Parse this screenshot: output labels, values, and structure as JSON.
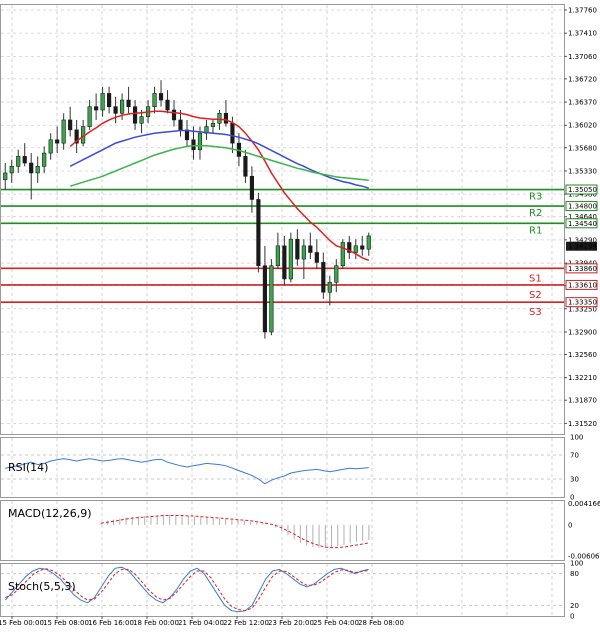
{
  "chart_data": [
    {
      "type": "candlestick",
      "name": "",
      "time_labels": [
        "15 Feb 00:00",
        "15 Feb 08:00",
        "16 Feb 16:00",
        "18 Feb 00:00",
        "21 Feb 04:00",
        "22 Feb 12:00",
        "23 Feb 20:00",
        "25 Feb 04:00",
        "28 Feb 08:00"
      ],
      "y_ticks": [
        "1.37760",
        "1.37410",
        "1.37060",
        "1.36720",
        "1.36370",
        "1.36020",
        "1.35680",
        "1.35330",
        "1.34980",
        "1.34640",
        "1.34290",
        "1.33940",
        "1.33600",
        "1.33250",
        "1.32900",
        "1.32560",
        "1.32210",
        "1.31870",
        "1.31520"
      ],
      "ylim": [
        1.3136,
        1.3785
      ],
      "current_price": "1.34194",
      "levels": [
        {
          "name": "R3",
          "value": 1.3505,
          "label": "1.35050",
          "color": "#1b8e1b"
        },
        {
          "name": "R2",
          "value": 1.348,
          "label": "1.34800",
          "color": "#1b8e1b"
        },
        {
          "name": "R1",
          "value": 1.3454,
          "label": "1.34540",
          "color": "#1b8e1b"
        },
        {
          "name": "S1",
          "value": 1.3386,
          "label": "1.33860",
          "color": "#d42020"
        },
        {
          "name": "S2",
          "value": 1.3361,
          "label": "1.33610",
          "color": "#d42020"
        },
        {
          "name": "S3",
          "value": 1.3335,
          "label": "1.33350",
          "color": "#d42020"
        }
      ],
      "candles": [
        [
          1.352,
          1.3545,
          1.3505,
          1.353
        ],
        [
          1.353,
          1.355,
          1.3515,
          1.354
        ],
        [
          1.354,
          1.3565,
          1.353,
          1.3555
        ],
        [
          1.3555,
          1.3575,
          1.354,
          1.3545
        ],
        [
          1.3545,
          1.356,
          1.349,
          1.353
        ],
        [
          1.353,
          1.3555,
          1.3515,
          1.354
        ],
        [
          1.354,
          1.357,
          1.353,
          1.356
        ],
        [
          1.356,
          1.359,
          1.355,
          1.358
        ],
        [
          1.358,
          1.36,
          1.356,
          1.3575
        ],
        [
          1.3575,
          1.362,
          1.3565,
          1.361
        ],
        [
          1.361,
          1.363,
          1.3585,
          1.3595
        ],
        [
          1.3595,
          1.361,
          1.356,
          1.3575
        ],
        [
          1.3575,
          1.361,
          1.357,
          1.36
        ],
        [
          1.36,
          1.364,
          1.3595,
          1.363
        ],
        [
          1.363,
          1.365,
          1.361,
          1.3625
        ],
        [
          1.3625,
          1.366,
          1.3615,
          1.365
        ],
        [
          1.365,
          1.366,
          1.362,
          1.363
        ],
        [
          1.363,
          1.3645,
          1.3605,
          1.362
        ],
        [
          1.362,
          1.365,
          1.361,
          1.364
        ],
        [
          1.364,
          1.366,
          1.362,
          1.363
        ],
        [
          1.363,
          1.364,
          1.3595,
          1.3605
        ],
        [
          1.3605,
          1.3625,
          1.359,
          1.3615
        ],
        [
          1.3615,
          1.364,
          1.3605,
          1.363
        ],
        [
          1.363,
          1.366,
          1.362,
          1.365
        ],
        [
          1.365,
          1.367,
          1.363,
          1.364
        ],
        [
          1.364,
          1.3655,
          1.362,
          1.3625
        ],
        [
          1.3625,
          1.364,
          1.36,
          1.361
        ],
        [
          1.361,
          1.3625,
          1.3585,
          1.3595
        ],
        [
          1.3595,
          1.361,
          1.357,
          1.358
        ],
        [
          1.358,
          1.36,
          1.355,
          1.3565
        ],
        [
          1.3565,
          1.36,
          1.355,
          1.359
        ],
        [
          1.359,
          1.361,
          1.358,
          1.36
        ],
        [
          1.36,
          1.361,
          1.359,
          1.3605
        ],
        [
          1.3605,
          1.3625,
          1.3595,
          1.362
        ],
        [
          1.362,
          1.364,
          1.36,
          1.3605
        ],
        [
          1.3605,
          1.3615,
          1.356,
          1.3575
        ],
        [
          1.3575,
          1.359,
          1.354,
          1.3555
        ],
        [
          1.3555,
          1.3565,
          1.3515,
          1.3525
        ],
        [
          1.3525,
          1.354,
          1.347,
          1.349
        ],
        [
          1.349,
          1.35,
          1.338,
          1.339
        ],
        [
          1.339,
          1.342,
          1.328,
          1.329
        ],
        [
          1.329,
          1.34,
          1.3285,
          1.339
        ],
        [
          1.339,
          1.344,
          1.3385,
          1.342
        ],
        [
          1.342,
          1.3435,
          1.336,
          1.337
        ],
        [
          1.337,
          1.344,
          1.3365,
          1.343
        ],
        [
          1.343,
          1.3445,
          1.339,
          1.34
        ],
        [
          1.34,
          1.343,
          1.337,
          1.342
        ],
        [
          1.342,
          1.344,
          1.34,
          1.341
        ],
        [
          1.341,
          1.343,
          1.3385,
          1.3395
        ],
        [
          1.3395,
          1.341,
          1.334,
          1.335
        ],
        [
          1.335,
          1.3375,
          1.333,
          1.3365
        ],
        [
          1.3365,
          1.34,
          1.335,
          1.339
        ],
        [
          1.339,
          1.343,
          1.3385,
          1.3425
        ],
        [
          1.3425,
          1.3435,
          1.34,
          1.341
        ],
        [
          1.341,
          1.343,
          1.34,
          1.342
        ],
        [
          1.342,
          1.3435,
          1.3405,
          1.3415
        ],
        [
          1.3415,
          1.344,
          1.3405,
          1.3435
        ]
      ],
      "ma_series": [
        {
          "color": "#e02020",
          "values": [
            null,
            null,
            null,
            null,
            null,
            null,
            null,
            null,
            null,
            null,
            1.357,
            1.3578,
            1.3585,
            1.3592,
            1.3598,
            1.3605,
            1.361,
            1.3614,
            1.3617,
            1.3619,
            1.362,
            1.3621,
            1.3622,
            1.3623,
            1.3623,
            1.3622,
            1.3621,
            1.362,
            1.3618,
            1.3615,
            1.3613,
            1.3612,
            1.3611,
            1.3611,
            1.361,
            1.3606,
            1.36,
            1.359,
            1.3578,
            1.3565,
            1.3548,
            1.353,
            1.3515,
            1.35,
            1.3488,
            1.3476,
            1.3466,
            1.3456,
            1.3448,
            1.3438,
            1.3428,
            1.342,
            1.3417,
            1.3413,
            1.3408,
            1.3402,
            1.3398
          ]
        },
        {
          "color": "#3a4bd8",
          "values": [
            null,
            null,
            null,
            null,
            null,
            null,
            null,
            null,
            null,
            null,
            1.354,
            1.3545,
            1.355,
            1.3555,
            1.356,
            1.3565,
            1.357,
            1.3575,
            1.3578,
            1.3581,
            1.3584,
            1.3586,
            1.3588,
            1.359,
            1.3591,
            1.3592,
            1.3593,
            1.3594,
            1.3594,
            1.3593,
            1.3592,
            1.3591,
            1.359,
            1.3589,
            1.3588,
            1.3586,
            1.3584,
            1.3581,
            1.3578,
            1.3574,
            1.3569,
            1.3564,
            1.3559,
            1.3554,
            1.3549,
            1.3544,
            1.354,
            1.3535,
            1.3531,
            1.3527,
            1.3523,
            1.352,
            1.3517,
            1.3515,
            1.3512,
            1.351,
            1.3507
          ]
        },
        {
          "color": "#3cb34b",
          "values": [
            null,
            null,
            null,
            null,
            null,
            null,
            null,
            null,
            null,
            null,
            1.351,
            1.3513,
            1.3516,
            1.3519,
            1.3522,
            1.3525,
            1.3529,
            1.3533,
            1.3537,
            1.3541,
            1.3545,
            1.3549,
            1.3553,
            1.3557,
            1.356,
            1.3563,
            1.3566,
            1.3568,
            1.357,
            1.3571,
            1.3571,
            1.3571,
            1.357,
            1.3569,
            1.3568,
            1.3566,
            1.3564,
            1.3561,
            1.3558,
            1.3555,
            1.3552,
            1.3549,
            1.3546,
            1.3543,
            1.354,
            1.3537,
            1.3535,
            1.3532,
            1.353,
            1.3528,
            1.3526,
            1.3524,
            1.3523,
            1.3522,
            1.3521,
            1.352,
            1.3519
          ]
        }
      ]
    },
    {
      "type": "line",
      "name": "RSI(14)",
      "y_ticks": [
        "100",
        "70",
        "30",
        "0"
      ],
      "ylim": [
        0,
        100
      ],
      "series": [
        {
          "color": "#3b7bd6",
          "values": [
            48,
            50,
            52,
            55,
            58,
            54,
            56,
            60,
            62,
            64,
            62,
            60,
            62,
            64,
            62,
            60,
            61,
            63,
            64,
            62,
            60,
            58,
            60,
            62,
            63,
            58,
            55,
            52,
            50,
            52,
            54,
            56,
            55,
            54,
            52,
            48,
            44,
            40,
            36,
            30,
            22,
            28,
            32,
            35,
            40,
            42,
            44,
            45,
            46,
            44,
            42,
            44,
            46,
            48,
            47,
            48,
            49
          ]
        }
      ]
    },
    {
      "type": "bar",
      "name": "MACD(12,26,9)",
      "y_ticks": [
        "0.004166",
        "0",
        "-0.006068"
      ],
      "ylim": [
        -0.0068,
        0.0048
      ],
      "series": [
        {
          "kind": "histogram",
          "values": [
            0.0005,
            0.0008,
            0.001,
            0.0012,
            0.0014,
            0.0015,
            0.0016,
            0.0017,
            0.0018,
            0.0018,
            0.0019,
            0.0019,
            0.0018,
            0.0018,
            0.0017,
            0.0016,
            0.0015,
            0.0014,
            0.0013,
            0.0012,
            0.0011,
            0.001,
            0.0009,
            0.0008,
            0.0006,
            0.0004,
            0.0002,
            0.0,
            -0.0005,
            -0.0012,
            -0.002,
            -0.0028,
            -0.0035,
            -0.004,
            -0.0043,
            -0.0044,
            -0.0044,
            -0.0043,
            -0.0041,
            -0.0039,
            -0.0036,
            -0.0033,
            -0.0031,
            -0.0029
          ]
        },
        {
          "kind": "signal",
          "color": "#e02020",
          "values": [
            0.0003,
            0.0005,
            0.0007,
            0.0009,
            0.0011,
            0.0013,
            0.0014,
            0.0015,
            0.0016,
            0.0017,
            0.0018,
            0.0018,
            0.0018,
            0.0018,
            0.0017,
            0.0017,
            0.0016,
            0.0015,
            0.0014,
            0.0013,
            0.0012,
            0.0011,
            0.001,
            0.0009,
            0.0008,
            0.0006,
            0.0004,
            0.0002,
            -0.0001,
            -0.0006,
            -0.0012,
            -0.0018,
            -0.0025,
            -0.0031,
            -0.0036,
            -0.004,
            -0.0043,
            -0.0044,
            -0.0044,
            -0.0043,
            -0.0041,
            -0.0039,
            -0.0037,
            -0.0035
          ]
        }
      ]
    },
    {
      "type": "line",
      "name": "Stoch(5,5,3)",
      "y_ticks": [
        "100",
        "80",
        "20",
        "0"
      ],
      "ylim": [
        0,
        100
      ],
      "series": [
        {
          "color": "#3b7bd6",
          "values": [
            30,
            45,
            60,
            75,
            85,
            90,
            88,
            80,
            70,
            55,
            40,
            30,
            25,
            35,
            55,
            75,
            90,
            92,
            85,
            70,
            55,
            40,
            30,
            25,
            35,
            50,
            70,
            85,
            90,
            80,
            60,
            40,
            20,
            10,
            8,
            10,
            20,
            45,
            70,
            85,
            88,
            80,
            70,
            60,
            55,
            60,
            70,
            80,
            88,
            90,
            85,
            80,
            85,
            88
          ]
        },
        {
          "color": "#e02020",
          "values": [
            35,
            40,
            52,
            65,
            78,
            86,
            89,
            85,
            76,
            64,
            50,
            38,
            30,
            32,
            45,
            62,
            80,
            88,
            88,
            78,
            63,
            48,
            36,
            30,
            33,
            45,
            60,
            75,
            85,
            85,
            72,
            52,
            32,
            18,
            12,
            10,
            15,
            32,
            55,
            75,
            85,
            84,
            75,
            65,
            58,
            58,
            64,
            73,
            82,
            87,
            86,
            82,
            84,
            86
          ]
        }
      ]
    }
  ]
}
